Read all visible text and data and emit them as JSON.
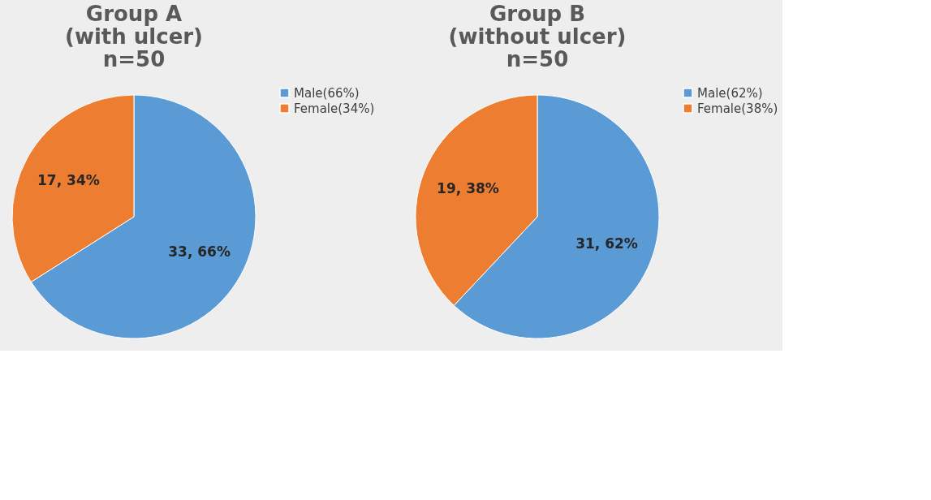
{
  "chart_data": [
    {
      "type": "pie",
      "title": "Group A\n(with ulcer)\nn=50",
      "categories": [
        "Male(66%)",
        "Female(34%)"
      ],
      "values": [
        33,
        17
      ],
      "colors": [
        "#5b9bd5",
        "#ed7d31"
      ],
      "value_labels": [
        "33, 66%",
        "17, 34%"
      ],
      "legend": "right"
    },
    {
      "type": "pie",
      "title": "Group B\n(without ulcer)\nn=50",
      "categories": [
        "Male(62%)",
        "Female(38%)"
      ],
      "values": [
        31,
        19
      ],
      "colors": [
        "#5b9bd5",
        "#ed7d31"
      ],
      "value_labels": [
        "31, 62%",
        "19, 38%"
      ],
      "legend": "right"
    }
  ]
}
